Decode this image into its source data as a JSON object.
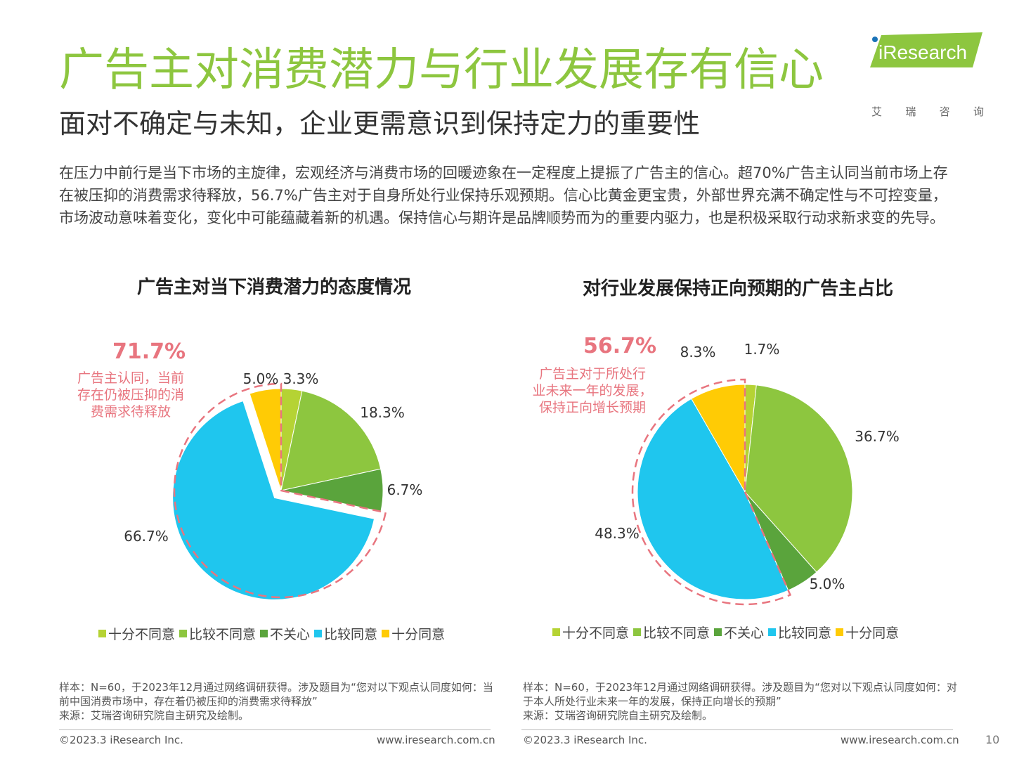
{
  "header": {
    "title": "广告主对消费潜力与行业发展存有信心",
    "subtitle": "面对不确定与未知，企业更需意识到保持定力的重要性"
  },
  "logo": {
    "brand": "iResearch",
    "sub_chars": [
      "艾",
      "瑞",
      "咨",
      "询"
    ]
  },
  "intro": "在压力中前行是当下市场的主旋律，宏观经济与消费市场的回暖迹象在一定程度上提振了广告主的信心。超70%广告主认同当前市场上存在被压抑的消费需求待释放，56.7%广告主对于自身所处行业保持乐观预期。信心比黄金更宝贵，外部世界充满不确定性与不可控变量，市场波动意味着变化，变化中可能蕴藏着新的机遇。保持信心与期许是品牌顺势而为的重要内驱力，也是积极采取行动求新求变的先导。",
  "chart_data": [
    {
      "type": "pie",
      "title": "广告主对当下消费潜力的态度情况",
      "categories": [
        "十分不同意",
        "比较不同意",
        "不关心",
        "比较同意",
        "十分同意"
      ],
      "values": [
        3.3,
        18.3,
        6.7,
        66.7,
        5.0
      ],
      "value_labels": [
        "3.3%",
        "18.3%",
        "6.7%",
        "66.7%",
        "5.0%"
      ],
      "colors": [
        "#b5d334",
        "#8dc63f",
        "#5aa43c",
        "#1fc6ee",
        "#ffcb05"
      ],
      "highlight": {
        "value": "71.7%",
        "text": [
          "广告主认同，当前",
          "存在仍被压抑的消",
          "费需求待释放"
        ]
      },
      "legend_position": "bottom"
    },
    {
      "type": "pie",
      "title": "对行业发展保持正向预期的广告主占比",
      "categories": [
        "十分不同意",
        "比较不同意",
        "不关心",
        "比较同意",
        "十分同意"
      ],
      "values": [
        1.7,
        36.7,
        5.0,
        48.3,
        8.3
      ],
      "value_labels": [
        "1.7%",
        "36.7%",
        "5.0%",
        "48.3%",
        "8.3%"
      ],
      "colors": [
        "#b5d334",
        "#8dc63f",
        "#5aa43c",
        "#1fc6ee",
        "#ffcb05"
      ],
      "highlight": {
        "value": "56.7%",
        "text": [
          "广告主对于所处行",
          "业未来一年的发展，",
          "保持正向增长预期"
        ]
      },
      "legend_position": "bottom"
    }
  ],
  "notes": [
    {
      "sample": "样本：N=60，于2023年12月通过网络调研获得。涉及题目为“您对以下观点认同度如何：当前中国消费市场中，存在着仍被压抑的消费需求待释放”",
      "source": "来源：艾瑞咨询研究院自主研究及绘制。"
    },
    {
      "sample": "样本：N=60，于2023年12月通过网络调研获得。涉及题目为“您对以下观点认同度如何：对于本人所处行业未来一年的发展，保持正向增长的预期”",
      "source": "来源：艾瑞咨询研究院自主研究及绘制。"
    }
  ],
  "footer": {
    "copyright": "©2023.3 iResearch Inc.",
    "website": "www.iresearch.com.cn",
    "page": "10"
  }
}
